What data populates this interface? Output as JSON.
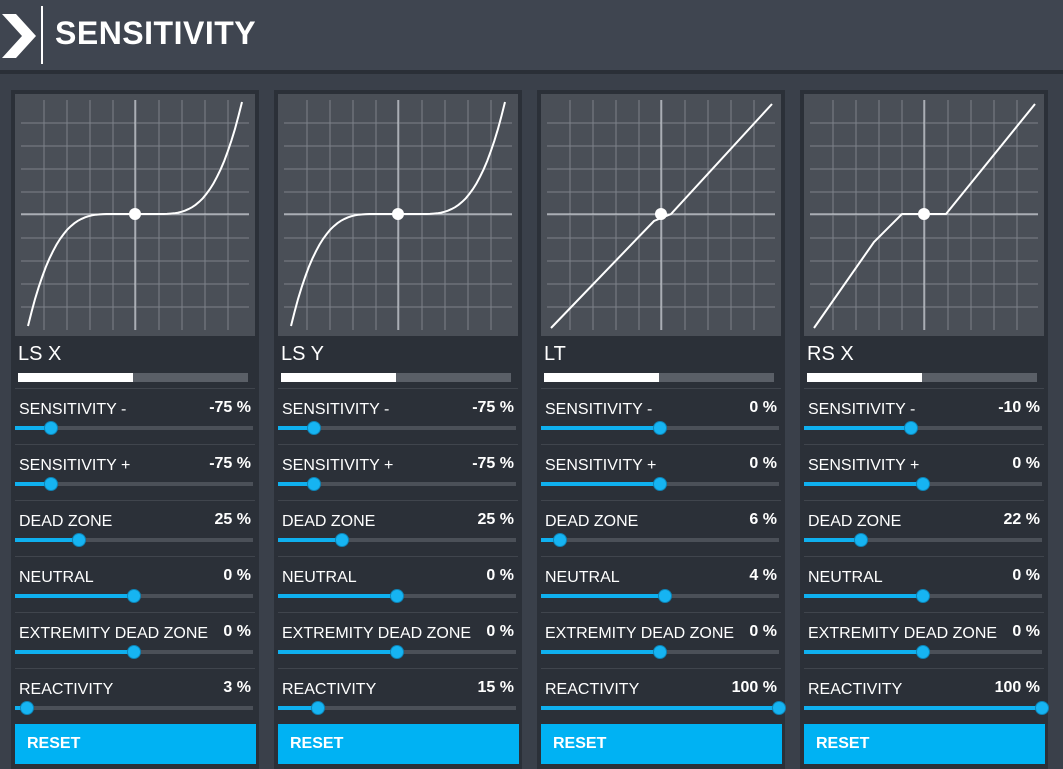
{
  "header": {
    "title": "SENSITIVITY"
  },
  "reset_label": "RESET",
  "accent": "#00b2f3",
  "panels": [
    {
      "name": "LS X",
      "progress": 0.5,
      "curve_type": "cubic",
      "settings": [
        {
          "label": "SENSITIVITY -",
          "value": "-75 %",
          "pos": 0.15
        },
        {
          "label": "SENSITIVITY +",
          "value": "-75 %",
          "pos": 0.15
        },
        {
          "label": "DEAD ZONE",
          "value": "25 %",
          "pos": 0.27
        },
        {
          "label": "NEUTRAL",
          "value": "0 %",
          "pos": 0.5
        },
        {
          "label": "EXTREMITY DEAD ZONE",
          "value": "0 %",
          "pos": 0.5
        },
        {
          "label": "REACTIVITY",
          "value": "3 %",
          "pos": 0.05
        }
      ]
    },
    {
      "name": "LS Y",
      "progress": 0.5,
      "curve_type": "cubic",
      "settings": [
        {
          "label": "SENSITIVITY -",
          "value": "-75 %",
          "pos": 0.15
        },
        {
          "label": "SENSITIVITY +",
          "value": "-75 %",
          "pos": 0.15
        },
        {
          "label": "DEAD ZONE",
          "value": "25 %",
          "pos": 0.27
        },
        {
          "label": "NEUTRAL",
          "value": "0 %",
          "pos": 0.5
        },
        {
          "label": "EXTREMITY DEAD ZONE",
          "value": "0 %",
          "pos": 0.5
        },
        {
          "label": "REACTIVITY",
          "value": "15 %",
          "pos": 0.17
        }
      ]
    },
    {
      "name": "LT",
      "progress": 0.5,
      "curve_type": "linear",
      "settings": [
        {
          "label": "SENSITIVITY -",
          "value": "0 %",
          "pos": 0.5
        },
        {
          "label": "SENSITIVITY +",
          "value": "0 %",
          "pos": 0.5
        },
        {
          "label": "DEAD ZONE",
          "value": "6 %",
          "pos": 0.08
        },
        {
          "label": "NEUTRAL",
          "value": "4 %",
          "pos": 0.52
        },
        {
          "label": "EXTREMITY DEAD ZONE",
          "value": "0 %",
          "pos": 0.5
        },
        {
          "label": "REACTIVITY",
          "value": "100 %",
          "pos": 1.0
        }
      ]
    },
    {
      "name": "RS X",
      "progress": 0.5,
      "curve_type": "linear-deadzone",
      "settings": [
        {
          "label": "SENSITIVITY -",
          "value": "-10 %",
          "pos": 0.45
        },
        {
          "label": "SENSITIVITY +",
          "value": "0 %",
          "pos": 0.5
        },
        {
          "label": "DEAD ZONE",
          "value": "22 %",
          "pos": 0.24
        },
        {
          "label": "NEUTRAL",
          "value": "0 %",
          "pos": 0.5
        },
        {
          "label": "EXTREMITY DEAD ZONE",
          "value": "0 %",
          "pos": 0.5
        },
        {
          "label": "REACTIVITY",
          "value": "100 %",
          "pos": 1.0
        }
      ]
    }
  ]
}
